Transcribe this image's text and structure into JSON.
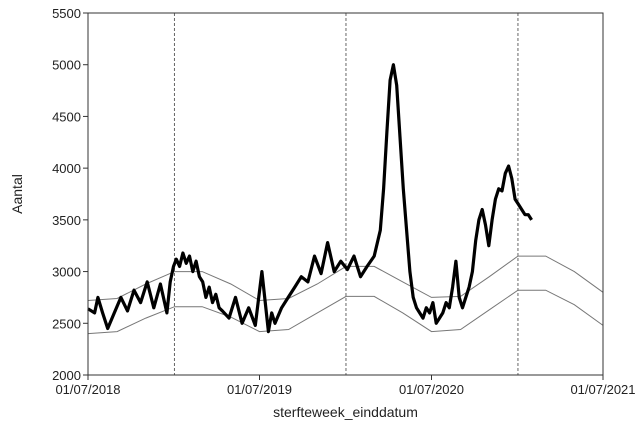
{
  "chart_data": {
    "type": "line",
    "title": "",
    "xlabel": "sterfteweek_einddatum",
    "ylabel": "Aantal",
    "xlim": [
      "2018-07-01",
      "2021-07-01"
    ],
    "ylim": [
      2000,
      5500
    ],
    "x_ticks": [
      "2018-07-01",
      "2019-07-01",
      "2020-07-01",
      "2021-07-01"
    ],
    "x_tick_labels": [
      "01/07/2018",
      "01/07/2019",
      "01/07/2020",
      "01/07/2021"
    ],
    "y_ticks": [
      2000,
      2500,
      3000,
      3500,
      4000,
      4500,
      5000,
      5500
    ],
    "y_tick_labels": [
      "2000",
      "2500",
      "3000",
      "3500",
      "4000",
      "4500",
      "5000",
      "5500"
    ],
    "vertical_reference_lines": [
      "2019-01-01",
      "2020-01-01",
      "2021-01-01"
    ],
    "grid": false,
    "legend": "none",
    "colors": {
      "observed": "#000000",
      "band": "#777777",
      "reference": "#666666",
      "frame": "#333333"
    },
    "series": [
      {
        "role": "observed",
        "x": [
          "2018-07-01",
          "2018-07-15",
          "2018-07-22",
          "2018-08-01",
          "2018-08-12",
          "2018-08-26",
          "2018-09-09",
          "2018-09-23",
          "2018-10-07",
          "2018-10-21",
          "2018-11-04",
          "2018-11-18",
          "2018-12-02",
          "2018-12-16",
          "2018-12-23",
          "2018-12-30",
          "2019-01-05",
          "2019-01-12",
          "2019-01-19",
          "2019-01-26",
          "2019-02-02",
          "2019-02-09",
          "2019-02-16",
          "2019-02-23",
          "2019-03-02",
          "2019-03-09",
          "2019-03-16",
          "2019-03-23",
          "2019-03-30",
          "2019-04-06",
          "2019-04-13",
          "2019-04-27",
          "2019-05-11",
          "2019-05-25",
          "2019-06-08",
          "2019-06-22",
          "2019-07-06",
          "2019-07-20",
          "2019-07-27",
          "2019-08-03",
          "2019-08-17",
          "2019-08-31",
          "2019-09-14",
          "2019-09-28",
          "2019-10-12",
          "2019-10-26",
          "2019-11-09",
          "2019-11-23",
          "2019-12-07",
          "2019-12-21",
          "2020-01-04",
          "2020-01-18",
          "2020-02-01",
          "2020-02-15",
          "2020-03-01",
          "2020-03-14",
          "2020-03-21",
          "2020-03-28",
          "2020-04-04",
          "2020-04-11",
          "2020-04-18",
          "2020-04-25",
          "2020-05-02",
          "2020-05-09",
          "2020-05-16",
          "2020-05-23",
          "2020-05-30",
          "2020-06-06",
          "2020-06-13",
          "2020-06-20",
          "2020-06-27",
          "2020-07-04",
          "2020-07-11",
          "2020-07-18",
          "2020-07-25",
          "2020-08-01",
          "2020-08-08",
          "2020-08-15",
          "2020-08-22",
          "2020-08-29",
          "2020-09-05",
          "2020-09-12",
          "2020-09-19",
          "2020-09-26",
          "2020-10-03",
          "2020-10-10",
          "2020-10-17",
          "2020-10-24",
          "2020-10-31",
          "2020-11-07",
          "2020-11-14",
          "2020-11-21",
          "2020-11-28",
          "2020-12-05",
          "2020-12-12",
          "2020-12-19",
          "2020-12-26",
          "2021-01-02",
          "2021-01-09",
          "2021-01-16",
          "2021-01-23",
          "2021-01-30"
        ],
        "y": [
          2640,
          2600,
          2750,
          2600,
          2450,
          2600,
          2750,
          2620,
          2820,
          2700,
          2900,
          2650,
          2880,
          2600,
          2900,
          3050,
          3120,
          3050,
          3180,
          3080,
          3150,
          3000,
          3100,
          2950,
          2900,
          2750,
          2850,
          2700,
          2780,
          2650,
          2620,
          2550,
          2750,
          2500,
          2650,
          2480,
          3000,
          2420,
          2600,
          2500,
          2650,
          2750,
          2850,
          2950,
          2900,
          3150,
          2980,
          3280,
          3000,
          3100,
          3020,
          3150,
          2950,
          3050,
          3150,
          3400,
          3800,
          4350,
          4850,
          5000,
          4800,
          4300,
          3800,
          3400,
          3000,
          2750,
          2650,
          2600,
          2550,
          2650,
          2600,
          2700,
          2500,
          2550,
          2600,
          2700,
          2650,
          2850,
          3100,
          2750,
          2650,
          2750,
          2850,
          3000,
          3300,
          3500,
          3600,
          3450,
          3250,
          3500,
          3700,
          3800,
          3780,
          3950,
          4020,
          3900,
          3700,
          3650,
          3600,
          3550,
          3550,
          3500
        ]
      },
      {
        "role": "band-upper",
        "x": [
          "2018-07-01",
          "2018-09-01",
          "2018-11-01",
          "2019-01-01",
          "2019-03-01",
          "2019-05-01",
          "2019-07-01",
          "2019-09-01",
          "2019-11-01",
          "2020-01-01",
          "2020-03-01",
          "2020-05-01",
          "2020-07-01",
          "2020-09-01",
          "2020-11-01",
          "2021-01-01",
          "2021-03-01",
          "2021-05-01",
          "2021-07-01"
        ],
        "y": [
          2720,
          2740,
          2880,
          3000,
          3000,
          2880,
          2720,
          2740,
          2880,
          3050,
          3050,
          2900,
          2750,
          2760,
          2950,
          3150,
          3150,
          3000,
          2800
        ]
      },
      {
        "role": "band-lower",
        "x": [
          "2018-07-01",
          "2018-09-01",
          "2018-11-01",
          "2019-01-01",
          "2019-03-01",
          "2019-05-01",
          "2019-07-01",
          "2019-09-01",
          "2019-11-01",
          "2020-01-01",
          "2020-03-01",
          "2020-05-01",
          "2020-07-01",
          "2020-09-01",
          "2020-11-01",
          "2021-01-01",
          "2021-03-01",
          "2021-05-01",
          "2021-07-01"
        ],
        "y": [
          2400,
          2420,
          2550,
          2660,
          2660,
          2560,
          2420,
          2440,
          2600,
          2760,
          2760,
          2600,
          2420,
          2440,
          2630,
          2820,
          2820,
          2680,
          2480
        ]
      }
    ]
  }
}
